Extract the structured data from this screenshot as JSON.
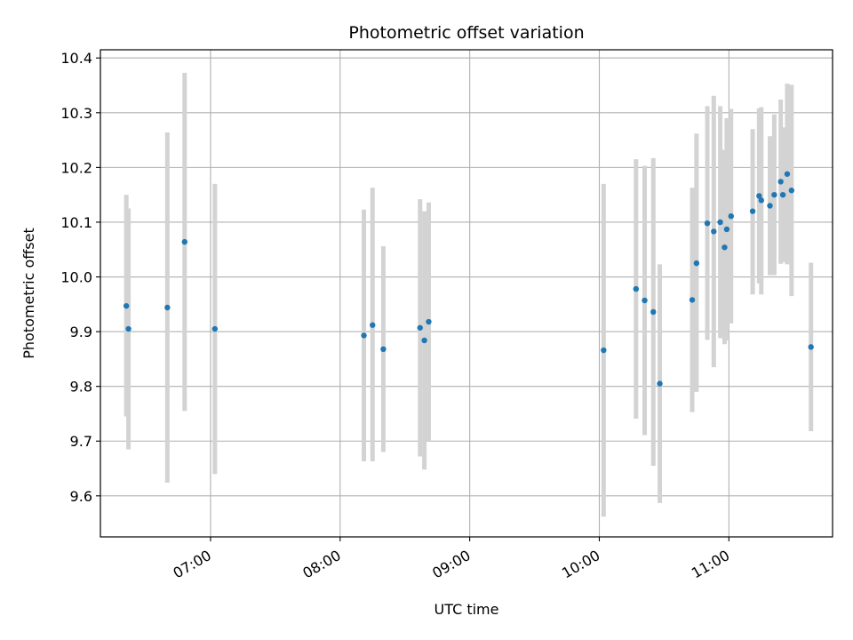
{
  "chart_data": {
    "type": "scatter",
    "title": "Photometric offset variation",
    "xlabel": "UTC time",
    "ylabel": "Photometric offset",
    "x_axis_type": "time",
    "xlim": [
      "06:09",
      "11:48"
    ],
    "ylim": [
      9.525,
      10.415
    ],
    "x_ticks": [
      "07:00",
      "08:00",
      "09:00",
      "10:00",
      "11:00"
    ],
    "y_ticks": [
      9.6,
      9.7,
      9.8,
      9.9,
      10.0,
      10.1,
      10.2,
      10.3,
      10.4
    ],
    "y_tick_labels": [
      "9.6",
      "9.7",
      "9.8",
      "9.9",
      "10.0",
      "10.1",
      "10.2",
      "10.3",
      "10.4"
    ],
    "grid": true,
    "colors": {
      "point": "#1f77b4",
      "errorbar": "#d3d3d3",
      "grid": "#b0b0b0"
    },
    "points": [
      {
        "x": "06:21",
        "y": 9.947,
        "lo": 9.745,
        "hi": 10.15
      },
      {
        "x": "06:22",
        "y": 9.905,
        "lo": 9.685,
        "hi": 10.125
      },
      {
        "x": "06:40",
        "y": 9.944,
        "lo": 9.624,
        "hi": 10.264
      },
      {
        "x": "06:48",
        "y": 10.064,
        "lo": 9.755,
        "hi": 10.373
      },
      {
        "x": "07:02",
        "y": 9.905,
        "lo": 9.64,
        "hi": 10.17
      },
      {
        "x": "08:11",
        "y": 9.893,
        "lo": 9.663,
        "hi": 10.123
      },
      {
        "x": "08:15",
        "y": 9.912,
        "lo": 9.663,
        "hi": 10.163
      },
      {
        "x": "08:20",
        "y": 9.868,
        "lo": 9.68,
        "hi": 10.056
      },
      {
        "x": "08:37",
        "y": 9.907,
        "lo": 9.672,
        "hi": 10.142
      },
      {
        "x": "08:39",
        "y": 9.884,
        "lo": 9.648,
        "hi": 10.12
      },
      {
        "x": "08:41",
        "y": 9.918,
        "lo": 9.7,
        "hi": 10.136
      },
      {
        "x": "10:02",
        "y": 9.866,
        "lo": 9.562,
        "hi": 10.17
      },
      {
        "x": "10:17",
        "y": 9.978,
        "lo": 9.741,
        "hi": 10.215
      },
      {
        "x": "10:21",
        "y": 9.957,
        "lo": 9.711,
        "hi": 10.203
      },
      {
        "x": "10:25",
        "y": 9.936,
        "lo": 9.655,
        "hi": 10.217
      },
      {
        "x": "10:28",
        "y": 9.805,
        "lo": 9.587,
        "hi": 10.023
      },
      {
        "x": "10:43",
        "y": 9.958,
        "lo": 9.753,
        "hi": 10.163
      },
      {
        "x": "10:45",
        "y": 10.025,
        "lo": 9.79,
        "hi": 10.262
      },
      {
        "x": "10:50",
        "y": 10.098,
        "lo": 9.885,
        "hi": 10.312
      },
      {
        "x": "10:53",
        "y": 10.083,
        "lo": 9.835,
        "hi": 10.331
      },
      {
        "x": "10:56",
        "y": 10.1,
        "lo": 9.888,
        "hi": 10.312
      },
      {
        "x": "10:58",
        "y": 10.054,
        "lo": 9.877,
        "hi": 10.232
      },
      {
        "x": "10:59",
        "y": 10.087,
        "lo": 9.884,
        "hi": 10.29
      },
      {
        "x": "11:01",
        "y": 10.111,
        "lo": 9.915,
        "hi": 10.307
      },
      {
        "x": "11:11",
        "y": 10.12,
        "lo": 9.968,
        "hi": 10.27
      },
      {
        "x": "11:14",
        "y": 10.148,
        "lo": 9.988,
        "hi": 10.308
      },
      {
        "x": "11:15",
        "y": 10.14,
        "lo": 9.968,
        "hi": 10.31
      },
      {
        "x": "11:19",
        "y": 10.13,
        "lo": 10.003,
        "hi": 10.257
      },
      {
        "x": "11:21",
        "y": 10.15,
        "lo": 10.003,
        "hi": 10.297
      },
      {
        "x": "11:24",
        "y": 10.174,
        "lo": 10.024,
        "hi": 10.324
      },
      {
        "x": "11:25",
        "y": 10.15,
        "lo": 10.027,
        "hi": 10.273
      },
      {
        "x": "11:27",
        "y": 10.188,
        "lo": 10.023,
        "hi": 10.353
      },
      {
        "x": "11:29",
        "y": 10.158,
        "lo": 9.965,
        "hi": 10.351
      },
      {
        "x": "11:38",
        "y": 9.872,
        "lo": 9.718,
        "hi": 10.026
      }
    ]
  }
}
